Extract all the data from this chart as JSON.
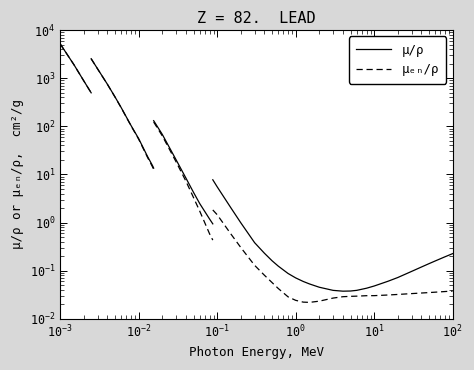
{
  "title": "Z = 82.  LEAD",
  "xlabel": "Photon Energy, MeV",
  "ylabel": "μ/ρ or μₑₙ/ρ,  cm²/g",
  "xlim": [
    0.001,
    100.0
  ],
  "ylim": [
    0.01,
    10000.0
  ],
  "legend_mu": "μ/ρ",
  "legend_muen": "μₑₙ/ρ",
  "mu_data": [
    [
      0.001,
      5176.0
    ],
    [
      0.0015,
      1901.0
    ],
    [
      0.002,
      880.1
    ],
    [
      0.002484,
      496.6
    ],
    [
      null,
      null
    ],
    [
      0.002484,
      2534.0
    ],
    [
      0.003,
      1560.0
    ],
    [
      0.004,
      747.8
    ],
    [
      0.005,
      407.8
    ],
    [
      0.006,
      243.8
    ],
    [
      0.008,
      103.8
    ],
    [
      0.01,
      55.49
    ],
    [
      0.013,
      23.48
    ],
    [
      0.015,
      15.3
    ],
    [
      0.01553,
      13.54
    ],
    [
      null,
      null
    ],
    [
      0.01553,
      130.9
    ],
    [
      0.02,
      68.03
    ],
    [
      0.03,
      20.14
    ],
    [
      0.04,
      8.413
    ],
    [
      0.05,
      4.242
    ],
    [
      0.06,
      2.481
    ],
    [
      0.08,
      1.189
    ],
    [
      0.088,
      0.9417
    ],
    [
      null,
      null
    ],
    [
      0.088,
      7.756
    ],
    [
      0.1,
      5.549
    ],
    [
      0.15,
      2.014
    ],
    [
      0.2,
      0.9921
    ],
    [
      0.3,
      0.3828
    ],
    [
      0.4,
      0.231
    ],
    [
      0.5,
      0.1614
    ],
    [
      0.6,
      0.1248
    ],
    [
      0.8,
      0.08777
    ],
    [
      1.0,
      0.07102
    ],
    [
      1.25,
      0.05983
    ],
    [
      1.5,
      0.05319
    ],
    [
      2.0,
      0.04541
    ],
    [
      3.0,
      0.0391
    ],
    [
      4.0,
      0.03762
    ],
    [
      5.0,
      0.0379
    ],
    [
      6.0,
      0.03914
    ],
    [
      8.0,
      0.04333
    ],
    [
      10.0,
      0.04815
    ],
    [
      15.0,
      0.06044
    ],
    [
      20.0,
      0.07229
    ],
    [
      30.0,
      0.09687
    ],
    [
      40.0,
      0.1195
    ],
    [
      50.0,
      0.1404
    ],
    [
      60.0,
      0.1597
    ],
    [
      80.0,
      0.1951
    ],
    [
      100.0,
      0.2267
    ]
  ],
  "muen_data": [
    [
      0.001,
      5174.0
    ],
    [
      0.0015,
      1899.0
    ],
    [
      0.002,
      878.9
    ],
    [
      0.002484,
      495.3
    ],
    [
      null,
      null
    ],
    [
      0.002484,
      2530.0
    ],
    [
      0.003,
      1555.0
    ],
    [
      0.004,
      745.0
    ],
    [
      0.005,
      405.4
    ],
    [
      0.006,
      241.8
    ],
    [
      0.008,
      102.1
    ],
    [
      0.01,
      54.2
    ],
    [
      0.013,
      22.49
    ],
    [
      0.015,
      14.43
    ],
    [
      0.01553,
      12.65
    ],
    [
      null,
      null
    ],
    [
      0.01553,
      122.8
    ],
    [
      0.02,
      63.39
    ],
    [
      0.03,
      18.27
    ],
    [
      0.04,
      7.262
    ],
    [
      0.05,
      3.31
    ],
    [
      0.06,
      1.73
    ],
    [
      0.08,
      0.5863
    ],
    [
      0.088,
      0.4327
    ],
    [
      null,
      null
    ],
    [
      0.088,
      1.832
    ],
    [
      0.1,
      1.461
    ],
    [
      0.15,
      0.5765
    ],
    [
      0.2,
      0.3041
    ],
    [
      0.3,
      0.1296
    ],
    [
      0.4,
      0.08063
    ],
    [
      0.5,
      0.05688
    ],
    [
      0.6,
      0.04281
    ],
    [
      0.8,
      0.0287
    ],
    [
      1.0,
      0.02428
    ],
    [
      1.25,
      0.02228
    ],
    [
      1.5,
      0.02201
    ],
    [
      2.0,
      0.02333
    ],
    [
      3.0,
      0.02705
    ],
    [
      4.0,
      0.02887
    ],
    [
      5.0,
      0.02938
    ],
    [
      6.0,
      0.02965
    ],
    [
      8.0,
      0.03031
    ],
    [
      10.0,
      0.03036
    ],
    [
      15.0,
      0.03132
    ],
    [
      20.0,
      0.03217
    ],
    [
      30.0,
      0.03349
    ],
    [
      40.0,
      0.03444
    ],
    [
      50.0,
      0.0352
    ],
    [
      60.0,
      0.03586
    ],
    [
      80.0,
      0.03697
    ],
    [
      100.0,
      0.03787
    ]
  ],
  "line_color": "#000000",
  "fig_bg_color": "#d8d8d8",
  "plot_bg_color": "#ffffff",
  "title_fontsize": 11,
  "label_fontsize": 9,
  "tick_fontsize": 8.5,
  "legend_fontsize": 9
}
